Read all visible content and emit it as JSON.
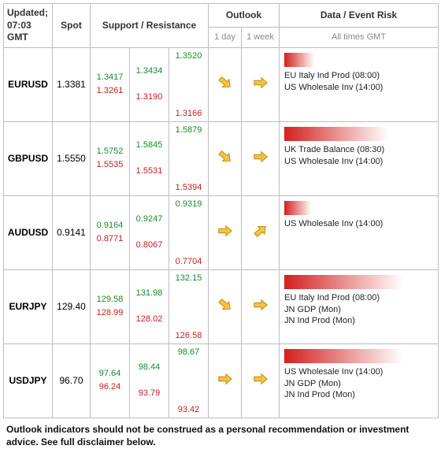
{
  "header": {
    "updated_label": "Updated;",
    "updated_time": "07:03 GMT",
    "spot": "Spot",
    "sr": "Support / Resistance",
    "outlook": "Outlook",
    "out_day": "1 day",
    "out_week": "1 week",
    "risk": "Data / Event Risk",
    "risk_sub": "All times GMT"
  },
  "colors": {
    "support": "#1a8a2a",
    "resistance": "#c4201d",
    "arrow_fill": "#f6c23e",
    "arrow_stroke": "#b58a12",
    "risk_red": "#d41f1f",
    "border": "#bdbdbd",
    "sub_text": "#8a8a8a"
  },
  "rows": [
    {
      "pair": "EURUSD",
      "spot": "1.3381",
      "sr_col1_sup": "1.3417",
      "sr_col1_res": "1.3261",
      "sr_col2_sup": "1.3434",
      "sr_col2_res": "1.3190",
      "sr_col3_sup": "1.3520",
      "sr_col3_res": "1.3166",
      "outlook_day": "down",
      "outlook_week": "flat",
      "risk_pct": 20,
      "risk_lines": [
        "EU Italy Ind Prod (08:00)",
        "US Wholesale Inv (14:00)"
      ]
    },
    {
      "pair": "GBPUSD",
      "spot": "1.5550",
      "sr_col1_sup": "1.5752",
      "sr_col1_res": "1.5535",
      "sr_col2_sup": "1.5845",
      "sr_col2_res": "1.5531",
      "sr_col3_sup": "1.5879",
      "sr_col3_res": "1.5394",
      "outlook_day": "down",
      "outlook_week": "flat",
      "risk_pct": 70,
      "risk_lines": [
        "UK Trade Balance (08:30)",
        "US Wholesale Inv (14:00)"
      ]
    },
    {
      "pair": "AUDUSD",
      "spot": "0.9141",
      "sr_col1_sup": "0.9164",
      "sr_col1_res": "0.8771",
      "sr_col2_sup": "0.9247",
      "sr_col2_res": "0.8067",
      "sr_col3_sup": "0.9319",
      "sr_col3_res": "0.7704",
      "outlook_day": "flat",
      "outlook_week": "up",
      "risk_pct": 18,
      "risk_lines": [
        "US Wholesale Inv (14:00)"
      ]
    },
    {
      "pair": "EURJPY",
      "spot": "129.40",
      "sr_col1_sup": "129.58",
      "sr_col1_res": "128.99",
      "sr_col2_sup": "131.98",
      "sr_col2_res": "128.02",
      "sr_col3_sup": "132.15",
      "sr_col3_res": "126.58",
      "outlook_day": "down",
      "outlook_week": "flat",
      "risk_pct": 80,
      "risk_lines": [
        "EU Italy Ind Prod (08:00)",
        "JN GDP  (Mon)",
        "JN Ind Prod (Mon)"
      ]
    },
    {
      "pair": "USDJPY",
      "spot": "96.70",
      "sr_col1_sup": "97.64",
      "sr_col1_res": "96.24",
      "sr_col2_sup": "98.44",
      "sr_col2_res": "93.79",
      "sr_col3_sup": "98.67",
      "sr_col3_res": "93.42",
      "outlook_day": "flat",
      "outlook_week": "flat",
      "risk_pct": 80,
      "risk_lines": [
        "US Wholesale Inv (14:00)",
        "JN GDP  (Mon)",
        "JN Ind Prod (Mon)"
      ]
    }
  ],
  "footnote": "Outlook indicators should not be construed as a personal recommendation or investment advice. See full disclaimer below."
}
